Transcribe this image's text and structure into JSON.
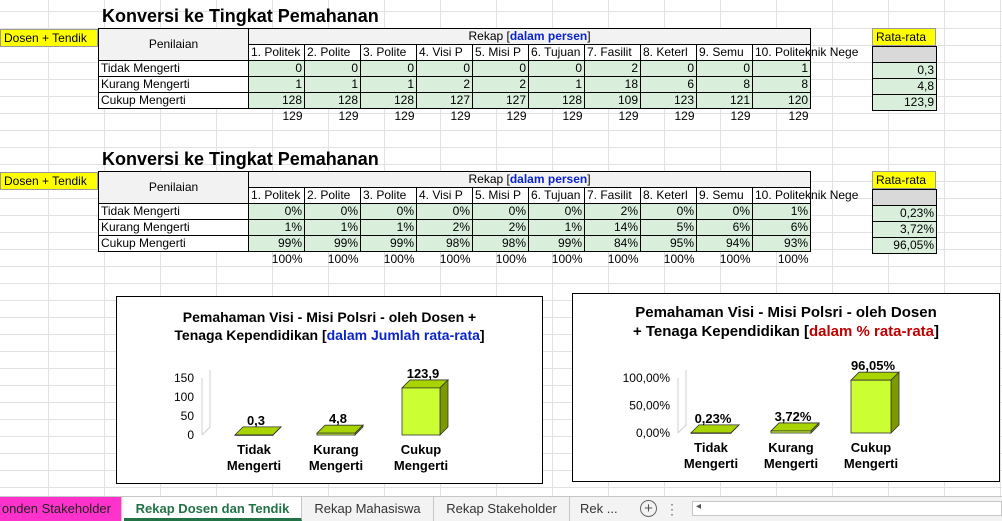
{
  "section1": {
    "title": "Konversi ke Tingkat Pemahanan",
    "tag": "Dosen + Tendik",
    "header_label": "Penilaian",
    "rekap_prefix": "Rekap [",
    "rekap_unit": "dalam persen",
    "rekap_suffix": "]",
    "avg_header": "Rata-rata",
    "columns": [
      "1. Politek",
      "2.  Polite",
      "3.  Polite",
      "4.  Visi P",
      "5.  Misi P",
      "6.  Tujuan",
      "7.  Fasilit",
      "8.  Keterl",
      "9.  Semu",
      "10.  Politeknik Nege"
    ],
    "rows": [
      {
        "label": "Tidak Mengerti",
        "values": [
          "0",
          "0",
          "0",
          "0",
          "0",
          "0",
          "2",
          "0",
          "0",
          "1"
        ],
        "avg": "0,3"
      },
      {
        "label": "Kurang Mengerti",
        "values": [
          "1",
          "1",
          "1",
          "2",
          "2",
          "1",
          "18",
          "6",
          "8",
          "8"
        ],
        "avg": "4,8"
      },
      {
        "label": "Cukup Mengerti",
        "values": [
          "128",
          "128",
          "128",
          "127",
          "127",
          "128",
          "109",
          "123",
          "121",
          "120"
        ],
        "avg": "123,9"
      }
    ],
    "totals": [
      "129",
      "129",
      "129",
      "129",
      "129",
      "129",
      "129",
      "129",
      "129",
      "129"
    ]
  },
  "section2": {
    "title": "Konversi ke Tingkat Pemahanan",
    "tag": "Dosen + Tendik",
    "header_label": "Penilaian",
    "rekap_prefix": "Rekap [",
    "rekap_unit": "dalam persen",
    "rekap_suffix": "]",
    "avg_header": "Rata-rata",
    "columns": [
      "1. Politek",
      "2.  Polite",
      "3.  Polite",
      "4.  Visi P",
      "5.  Misi P",
      "6.  Tujuan",
      "7.  Fasilit",
      "8.  Keterl",
      "9.  Semu",
      "10.  Politeknik Nege"
    ],
    "rows": [
      {
        "label": "Tidak Mengerti",
        "values": [
          "0%",
          "0%",
          "0%",
          "0%",
          "0%",
          "0%",
          "2%",
          "0%",
          "0%",
          "1%"
        ],
        "avg": "0,23%"
      },
      {
        "label": "Kurang Mengerti",
        "values": [
          "1%",
          "1%",
          "1%",
          "2%",
          "2%",
          "1%",
          "14%",
          "5%",
          "6%",
          "6%"
        ],
        "avg": "3,72%"
      },
      {
        "label": "Cukup Mengerti",
        "values": [
          "99%",
          "99%",
          "99%",
          "98%",
          "98%",
          "99%",
          "84%",
          "95%",
          "94%",
          "93%"
        ],
        "avg": "96,05%"
      }
    ],
    "totals": [
      "100%",
      "100%",
      "100%",
      "100%",
      "100%",
      "100%",
      "100%",
      "100%",
      "100%",
      "100%"
    ]
  },
  "chart_data": [
    {
      "type": "bar",
      "title_line1": "Pemahaman Visi - Misi Polsri - oleh Dosen +",
      "title_line2_prefix": "Tenaga Kependidikan [",
      "title_unit": "dalam Jumlah rata-rata",
      "title_suffix": "]",
      "categories": [
        "Tidak\nMengerti",
        "Kurang\nMengerti",
        "Cukup\nMengerti"
      ],
      "values": [
        0.3,
        4.8,
        123.9
      ],
      "value_labels": [
        "0,3",
        "4,8",
        "123,9"
      ],
      "ylim": [
        0,
        150
      ],
      "yticks": [
        "150",
        "100",
        "50",
        "0"
      ],
      "ytick_values": [
        150,
        100,
        50,
        0
      ],
      "bar_color": "#ccff33",
      "unit_color": "#0b24c9"
    },
    {
      "type": "bar",
      "title_line1": "Pemahaman Visi - Misi Polsri - oleh Dosen",
      "title_line2_prefix": "+ Tenaga Kependidikan [",
      "title_unit": "dalam % rata-rata",
      "title_suffix": "]",
      "categories": [
        "Tidak\nMengerti",
        "Kurang\nMengerti",
        "Cukup\nMengerti"
      ],
      "values": [
        0.23,
        3.72,
        96.05
      ],
      "value_labels": [
        "0,23%",
        "3,72%",
        "96,05%"
      ],
      "ylim": [
        0,
        100
      ],
      "yticks": [
        "100,00%",
        "50,00%",
        "0,00%"
      ],
      "ytick_values": [
        100,
        50,
        0
      ],
      "bar_color": "#ccff33",
      "unit_color": "#c00000"
    }
  ],
  "sheet_tabs": [
    "onden Stakeholder",
    "Rekap Dosen dan Tendik",
    "Rekap Mahasiswa",
    "Rekap Stakeholder",
    "Rek ..."
  ],
  "active_tab": "Rekap Dosen dan Tendik"
}
